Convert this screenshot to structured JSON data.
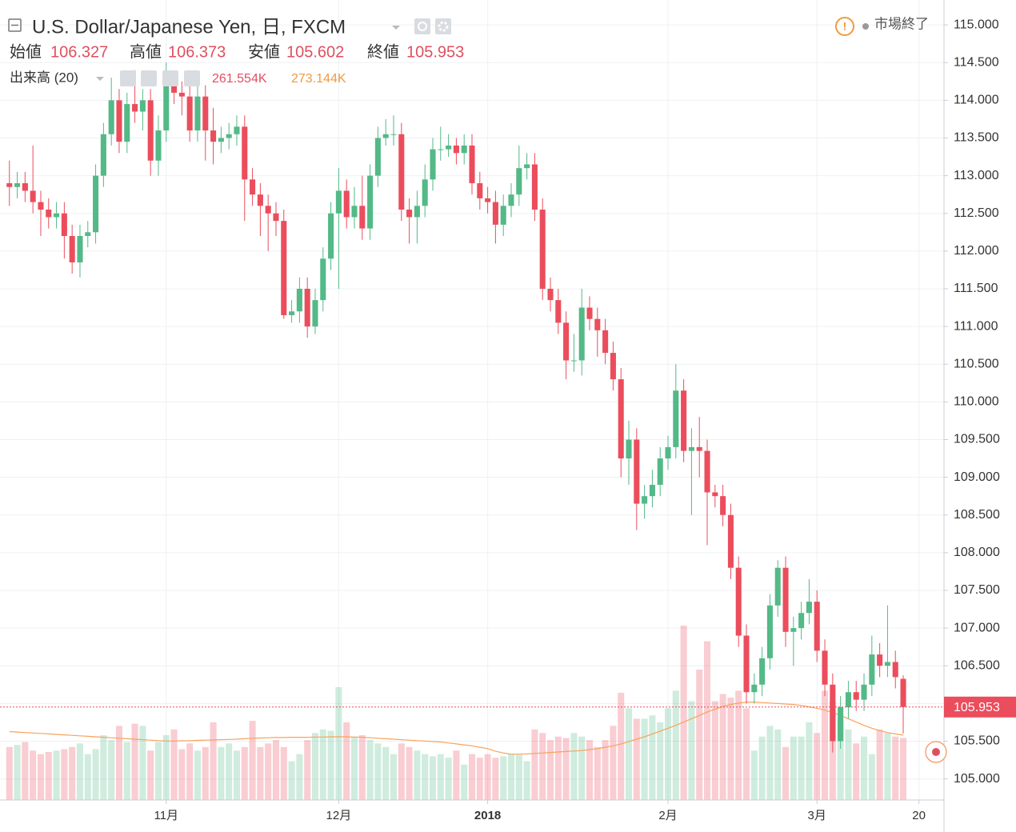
{
  "chart_data": {
    "type": "candlestick",
    "title": "U.S. Dollar/Japanese Yen, 日, FXCM",
    "status": "市場終了",
    "ohlc_labels": [
      "始値",
      "高値",
      "安値",
      "終値"
    ],
    "volume_title": "出来高 (20)",
    "up_color": "#53b987",
    "down_color": "#eb4d5c",
    "ma_color": "#f7a35c",
    "grid": true,
    "xlim": [
      -1.2,
      119.2
    ],
    "xticks": [
      {
        "value": 20,
        "label": "11月"
      },
      {
        "value": 42,
        "label": "12月"
      },
      {
        "value": 61,
        "label": "2018"
      },
      {
        "value": 84,
        "label": "2月"
      },
      {
        "value": 103,
        "label": "3月"
      },
      {
        "value": 116,
        "label": "20"
      }
    ],
    "ylim": [
      104.72,
      115.33
    ],
    "yticks": [
      {
        "value": 105,
        "label": "105.000"
      },
      {
        "value": 105.5,
        "label": "105.500"
      },
      {
        "value": 106,
        "label": "106.000"
      },
      {
        "value": 106.5,
        "label": "106.500"
      },
      {
        "value": 107,
        "label": "107.000"
      },
      {
        "value": 107.5,
        "label": "107.500"
      },
      {
        "value": 108,
        "label": "108.000"
      },
      {
        "value": 108.5,
        "label": "108.500"
      },
      {
        "value": 109,
        "label": "109.000"
      },
      {
        "value": 109.5,
        "label": "109.500"
      },
      {
        "value": 110,
        "label": "110.000"
      },
      {
        "value": 110.5,
        "label": "110.500"
      },
      {
        "value": 111,
        "label": "111.000"
      },
      {
        "value": 111.5,
        "label": "111.500"
      },
      {
        "value": 112,
        "label": "112.000"
      },
      {
        "value": 112.5,
        "label": "112.500"
      },
      {
        "value": 113,
        "label": "113.000"
      },
      {
        "value": 113.5,
        "label": "113.500"
      },
      {
        "value": 114,
        "label": "114.000"
      },
      {
        "value": 114.5,
        "label": "114.500"
      },
      {
        "value": 115,
        "label": "115.000"
      }
    ],
    "open": [
      112.9,
      112.85,
      112.9,
      112.8,
      112.65,
      112.55,
      112.45,
      112.5,
      112.2,
      111.85,
      112.2,
      112.25,
      113.0,
      113.55,
      114.0,
      113.45,
      113.95,
      113.85,
      114.0,
      113.2,
      113.6,
      114.2,
      114.1,
      114.05,
      113.6,
      114.05,
      113.6,
      113.45,
      113.5,
      113.55,
      113.65,
      112.95,
      112.75,
      112.6,
      112.5,
      112.4,
      111.15,
      111.2,
      111.5,
      111.0,
      111.35,
      111.9,
      112.5,
      112.8,
      112.45,
      112.6,
      112.3,
      113.0,
      113.5,
      113.55,
      113.55,
      112.55,
      112.45,
      112.6,
      112.95,
      113.35,
      113.35,
      113.4,
      113.3,
      113.4,
      112.9,
      112.7,
      112.65,
      112.35,
      112.6,
      112.75,
      113.1,
      113.15,
      112.55,
      111.5,
      111.35,
      111.05,
      110.55,
      110.55,
      111.25,
      111.1,
      110.95,
      110.65,
      110.3,
      109.25,
      109.5,
      108.65,
      108.75,
      108.9,
      109.25,
      109.4,
      110.15,
      109.35,
      109.4,
      109.35,
      108.8,
      108.75,
      108.5,
      107.8,
      106.9,
      106.15,
      106.25,
      106.6,
      107.3,
      107.8,
      106.95,
      107.0,
      107.2,
      107.35,
      106.7,
      106.25,
      105.5,
      105.95,
      106.15,
      106.05,
      106.25,
      106.65,
      106.5,
      106.55,
      106.327
    ],
    "high": [
      113.2,
      113.05,
      113.05,
      113.4,
      112.8,
      112.7,
      112.65,
      112.65,
      112.35,
      112.35,
      112.4,
      113.15,
      113.7,
      114.3,
      114.15,
      114.1,
      114.4,
      114.15,
      114.15,
      113.8,
      114.5,
      114.35,
      114.25,
      114.2,
      114.2,
      114.2,
      113.9,
      113.65,
      113.7,
      113.8,
      113.8,
      113.1,
      112.9,
      112.75,
      112.65,
      112.55,
      111.35,
      111.65,
      111.65,
      111.5,
      112.05,
      112.65,
      113.1,
      112.95,
      112.85,
      113.0,
      113.15,
      113.65,
      113.75,
      113.8,
      113.7,
      112.7,
      112.8,
      113.15,
      113.5,
      113.65,
      113.55,
      113.5,
      113.55,
      113.55,
      113.05,
      112.85,
      112.8,
      112.75,
      112.9,
      113.4,
      113.3,
      113.3,
      112.7,
      111.65,
      111.5,
      111.2,
      110.9,
      111.5,
      111.4,
      111.25,
      111.1,
      110.8,
      110.45,
      109.75,
      109.65,
      108.9,
      109.1,
      109.4,
      109.55,
      110.5,
      110.3,
      109.65,
      109.8,
      109.5,
      108.9,
      108.9,
      108.65,
      107.95,
      107.05,
      106.4,
      106.75,
      107.45,
      107.9,
      107.95,
      107.15,
      107.35,
      107.65,
      107.5,
      106.85,
      106.4,
      106.1,
      106.3,
      106.3,
      106.4,
      106.9,
      106.8,
      107.3,
      106.7,
      106.373
    ],
    "low": [
      112.6,
      112.7,
      112.65,
      112.5,
      112.2,
      112.3,
      112.3,
      111.9,
      111.7,
      111.65,
      112.05,
      112.1,
      112.85,
      113.4,
      113.3,
      113.3,
      113.7,
      113.6,
      113.0,
      113.0,
      113.45,
      113.95,
      113.8,
      113.45,
      113.45,
      113.2,
      113.15,
      113.3,
      113.35,
      113.4,
      112.4,
      112.6,
      112.2,
      112.0,
      112.2,
      111.1,
      111.05,
      111.05,
      110.85,
      110.9,
      111.2,
      111.75,
      111.5,
      112.3,
      112.3,
      112.15,
      112.15,
      112.85,
      113.4,
      113.4,
      112.4,
      112.1,
      112.1,
      112.45,
      112.8,
      113.2,
      113.25,
      113.15,
      113.15,
      112.75,
      112.55,
      112.5,
      112.1,
      112.2,
      112.45,
      112.6,
      112.95,
      112.4,
      111.35,
      111.2,
      110.9,
      110.3,
      110.4,
      110.35,
      110.95,
      110.6,
      110.5,
      110.15,
      109.0,
      108.9,
      108.3,
      108.45,
      108.6,
      108.75,
      109.1,
      109.25,
      109.2,
      108.5,
      109.0,
      108.1,
      108.6,
      108.35,
      107.65,
      106.75,
      106.0,
      106.0,
      106.1,
      106.45,
      107.15,
      106.75,
      106.5,
      106.85,
      107.05,
      106.55,
      106.1,
      105.35,
      105.4,
      105.8,
      105.9,
      105.9,
      106.1,
      106.35,
      106.35,
      106.2,
      105.602
    ],
    "close": [
      112.85,
      112.9,
      112.8,
      112.65,
      112.55,
      112.45,
      112.5,
      112.2,
      111.85,
      112.2,
      112.25,
      113.0,
      113.55,
      114.0,
      113.45,
      113.95,
      113.85,
      114.0,
      113.2,
      113.6,
      114.2,
      114.1,
      114.05,
      113.6,
      114.05,
      113.6,
      113.45,
      113.5,
      113.55,
      113.65,
      112.95,
      112.75,
      112.6,
      112.5,
      112.4,
      111.15,
      111.2,
      111.5,
      111.0,
      111.35,
      111.9,
      112.5,
      112.8,
      112.45,
      112.6,
      112.3,
      113.0,
      113.5,
      113.55,
      113.55,
      112.55,
      112.45,
      112.6,
      112.95,
      113.35,
      113.35,
      113.4,
      113.3,
      113.4,
      112.9,
      112.7,
      112.65,
      112.35,
      112.6,
      112.75,
      113.1,
      113.15,
      112.55,
      111.5,
      111.35,
      111.05,
      110.55,
      110.55,
      111.25,
      111.1,
      110.95,
      110.65,
      110.3,
      109.25,
      109.5,
      108.65,
      108.75,
      108.9,
      109.25,
      109.4,
      110.15,
      109.35,
      109.4,
      109.35,
      108.8,
      108.75,
      108.5,
      107.8,
      106.9,
      106.15,
      106.25,
      106.6,
      107.3,
      107.8,
      106.95,
      107.0,
      107.2,
      107.35,
      106.7,
      106.25,
      105.5,
      105.95,
      106.15,
      106.05,
      106.25,
      106.65,
      106.5,
      106.55,
      106.35,
      105.953
    ],
    "vlim": [
      0,
      1000
    ],
    "volume": [
      223,
      232,
      244,
      208,
      193,
      202,
      208,
      214,
      223,
      238,
      193,
      214,
      273,
      252,
      312,
      244,
      321,
      312,
      208,
      244,
      273,
      297,
      214,
      238,
      208,
      223,
      327,
      223,
      238,
      208,
      223,
      333,
      223,
      238,
      252,
      223,
      163,
      193,
      252,
      282,
      297,
      291,
      475,
      327,
      267,
      273,
      252,
      238,
      223,
      193,
      238,
      223,
      208,
      193,
      184,
      193,
      178,
      208,
      149,
      193,
      178,
      193,
      178,
      184,
      193,
      190,
      163,
      297,
      282,
      252,
      267,
      261,
      282,
      267,
      252,
      223,
      252,
      312,
      451,
      386,
      342,
      342,
      356,
      327,
      386,
      460,
      734,
      416,
      549,
      668,
      416,
      446,
      431,
      460,
      386,
      208,
      267,
      312,
      297,
      223,
      267,
      267,
      327,
      282,
      460,
      416,
      342,
      297,
      238,
      267,
      193,
      297,
      282,
      267,
      261.554
    ],
    "volume_ma": [
      288,
      286,
      284,
      282,
      280,
      278,
      276,
      274,
      272,
      270,
      268,
      266,
      264,
      262,
      260,
      258,
      256,
      254,
      252,
      250,
      248,
      248,
      249,
      250,
      251,
      252,
      253,
      254,
      255,
      256,
      258,
      260,
      261,
      262,
      263,
      263,
      264,
      264,
      264,
      265,
      265,
      266,
      266,
      266,
      265,
      264,
      262,
      260,
      258,
      256,
      254,
      252,
      250,
      248,
      246,
      244,
      240,
      236,
      232,
      228,
      222,
      216,
      205,
      198,
      193,
      193,
      194,
      196,
      198,
      200,
      202,
      204,
      206,
      208,
      212,
      216,
      222,
      228,
      236,
      246,
      256,
      266,
      278,
      290,
      302,
      314,
      328,
      342,
      356,
      370,
      382,
      394,
      402,
      408,
      412,
      412,
      410,
      408,
      406,
      404,
      402,
      398,
      392,
      386,
      378,
      368,
      356,
      342,
      328,
      314,
      302,
      292,
      284,
      278,
      273.144
    ],
    "volume_last_label": "261.554K",
    "volume_ma_last_label": "273.144K"
  }
}
